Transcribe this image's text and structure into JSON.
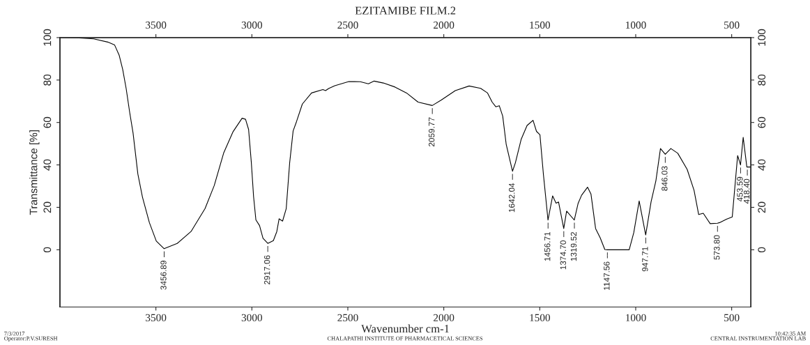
{
  "chart_data": {
    "type": "line",
    "title": "EZITAMIBE FILM.2",
    "xlabel": "Wavenumber cm-1",
    "ylabel": "Transmittance [%]",
    "xlim": [
      4000,
      400
    ],
    "xticks": [
      3500,
      3000,
      2500,
      2000,
      1500,
      1000,
      500
    ],
    "x2lim": [
      4000,
      400
    ],
    "x2ticks": [
      3500,
      3000,
      2500,
      2000,
      1500,
      1000,
      500
    ],
    "ylim": [
      -27,
      100
    ],
    "yticks": [
      0,
      20,
      40,
      60,
      80,
      100
    ],
    "y2lim": [
      -27,
      100
    ],
    "y2ticks": [
      0,
      20,
      40,
      60,
      80,
      100
    ],
    "grid": false,
    "marker": "none",
    "line_style": "solid",
    "series": [
      {
        "color": "#000000",
        "x": [
          4000,
          3900,
          3824,
          3751,
          3715,
          3691,
          3673,
          3655,
          3637,
          3619,
          3594,
          3570,
          3534,
          3498,
          3457,
          3389,
          3317,
          3244,
          3196,
          3147,
          3099,
          3051,
          3033,
          3017,
          3003,
          2991,
          2979,
          2960,
          2942,
          2917,
          2888,
          2870,
          2858,
          2840,
          2821,
          2803,
          2785,
          2767,
          2737,
          2689,
          2630,
          2616,
          2600,
          2568,
          2495,
          2435,
          2393,
          2363,
          2315,
          2254,
          2194,
          2134,
          2060,
          2013,
          1940,
          1868,
          1808,
          1772,
          1748,
          1729,
          1711,
          1693,
          1675,
          1642,
          1627,
          1597,
          1566,
          1535,
          1517,
          1499,
          1481,
          1457,
          1433,
          1415,
          1402,
          1375,
          1360,
          1320,
          1300,
          1282,
          1251,
          1233,
          1209,
          1185,
          1161,
          1148,
          1034,
          1010,
          982,
          948,
          920,
          895,
          871,
          846,
          817,
          781,
          732,
          696,
          672,
          648,
          612,
          574,
          563,
          527,
          497,
          469,
          454,
          440,
          421,
          400
        ],
        "values": [
          100,
          99.8,
          99.4,
          97.9,
          96.5,
          91.6,
          85,
          76,
          65,
          55,
          35.7,
          24.8,
          12.8,
          4.1,
          0.5,
          3,
          8.6,
          19.4,
          30.3,
          45.6,
          55.5,
          62,
          61.5,
          56.7,
          41.4,
          25,
          14.1,
          11.4,
          5.4,
          3,
          4.3,
          8.6,
          14.6,
          13.5,
          19.4,
          41,
          56,
          60.5,
          68.7,
          73.9,
          75.5,
          75,
          76,
          77.3,
          79.3,
          79.2,
          78.2,
          79.5,
          78.6,
          76.7,
          73.9,
          69.6,
          68,
          70.6,
          75,
          77.2,
          76.1,
          73.9,
          69.6,
          67.4,
          67.9,
          63,
          49.8,
          37,
          41,
          52,
          58.6,
          61,
          55.8,
          54.2,
          35.6,
          14,
          25.4,
          22,
          22.5,
          10,
          18.2,
          14,
          21.9,
          25.7,
          29.5,
          26.2,
          10,
          5.6,
          0.1,
          0,
          0,
          8.1,
          23,
          7,
          22.6,
          32.4,
          47.7,
          45,
          47.7,
          45.5,
          37.9,
          28,
          16.6,
          17.2,
          12.3,
          12.5,
          12.8,
          14.4,
          15.5,
          44.4,
          40,
          53,
          39,
          39
        ]
      }
    ],
    "annotations": [
      {
        "text": "3456.89",
        "x": 3456.89,
        "y": 0.5
      },
      {
        "text": "2917.06",
        "x": 2917.06,
        "y": 3
      },
      {
        "text": "2059.77",
        "x": 2059.77,
        "y": 68
      },
      {
        "text": "1642.04",
        "x": 1642.04,
        "y": 37
      },
      {
        "text": "1456.71",
        "x": 1456.71,
        "y": 14
      },
      {
        "text": "1374.70",
        "x": 1374.7,
        "y": 10
      },
      {
        "text": "1319.52",
        "x": 1319.52,
        "y": 14
      },
      {
        "text": "1147.56",
        "x": 1147.56,
        "y": 0
      },
      {
        "text": "947.71",
        "x": 947.71,
        "y": 7
      },
      {
        "text": "846.03",
        "x": 846.03,
        "y": 45
      },
      {
        "text": "573.80",
        "x": 573.8,
        "y": 12.5
      },
      {
        "text": "453.59",
        "x": 453.59,
        "y": 40
      },
      {
        "text": "418.40",
        "x": 418.4,
        "y": 39
      },
      "7/3/2017\nOperator:P.V.SURESH",
      "CHALAPATHI INSTITUTE OF PHARMACETICAL SCIENCES",
      "10:42:35 AM\nCENTRAL INSTRUMENTATION LAB"
    ]
  }
}
